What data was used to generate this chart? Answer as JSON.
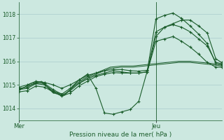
{
  "title": "Pression niveau de la mer( hPa )",
  "bg_color": "#cce8e0",
  "grid_color": "#aacccc",
  "line_color": "#1a5c2a",
  "ylim": [
    1013.5,
    1018.5
  ],
  "yticks": [
    1014,
    1015,
    1016,
    1017,
    1018
  ],
  "xtick_labels": [
    "Mer",
    "Jeu"
  ],
  "xtick_pos": [
    0,
    48
  ],
  "vline_x": 48,
  "xlim": [
    0,
    71
  ],
  "series_smooth_1": {
    "x": [
      0,
      4,
      8,
      12,
      16,
      20,
      24,
      28,
      32,
      36,
      40,
      44,
      48,
      52,
      56,
      60,
      64,
      68,
      71
    ],
    "y": [
      1014.8,
      1015.0,
      1015.1,
      1014.7,
      1014.6,
      1015.0,
      1015.3,
      1015.5,
      1015.7,
      1015.75,
      1015.75,
      1015.8,
      1015.85,
      1015.9,
      1015.95,
      1015.95,
      1015.9,
      1015.85,
      1015.8
    ]
  },
  "series_smooth_2": {
    "x": [
      0,
      4,
      8,
      12,
      16,
      20,
      24,
      28,
      32,
      36,
      40,
      44,
      48,
      52,
      56,
      60,
      64,
      68,
      71
    ],
    "y": [
      1014.75,
      1015.05,
      1015.15,
      1014.65,
      1014.55,
      1015.05,
      1015.35,
      1015.55,
      1015.75,
      1015.8,
      1015.8,
      1015.85,
      1015.9,
      1015.95,
      1016.0,
      1016.0,
      1015.95,
      1015.9,
      1015.85
    ]
  },
  "series_marker": [
    {
      "x": [
        0,
        3,
        6,
        9,
        12,
        15,
        18,
        21,
        24,
        27,
        30,
        33,
        36,
        39,
        42,
        45,
        48,
        51,
        54,
        57,
        60,
        63,
        66,
        69,
        71
      ],
      "y": [
        1014.85,
        1014.9,
        1015.1,
        1015.05,
        1014.8,
        1014.6,
        1014.85,
        1015.2,
        1015.45,
        1014.85,
        1013.8,
        1013.75,
        1013.85,
        1013.95,
        1014.3,
        1015.6,
        1017.05,
        1017.45,
        1017.6,
        1017.75,
        1017.75,
        1017.5,
        1017.2,
        1016.1,
        1015.95
      ]
    },
    {
      "x": [
        0,
        3,
        6,
        9,
        12,
        15,
        18,
        21,
        24,
        27,
        30,
        33,
        36,
        39,
        42,
        45,
        48,
        51,
        54,
        57,
        60,
        63,
        66,
        69,
        71
      ],
      "y": [
        1014.8,
        1014.85,
        1015.05,
        1015.0,
        1014.75,
        1014.55,
        1014.75,
        1015.05,
        1015.25,
        1015.4,
        1015.5,
        1015.6,
        1015.55,
        1015.5,
        1015.5,
        1015.55,
        1017.25,
        1017.45,
        1017.55,
        1017.45,
        1017.25,
        1016.95,
        1016.65,
        1015.95,
        1015.9
      ]
    },
    {
      "x": [
        0,
        3,
        6,
        9,
        12,
        15,
        18,
        21,
        24,
        27,
        30,
        33,
        36,
        39,
        42,
        45,
        48,
        51,
        54,
        57,
        60,
        63,
        66,
        69,
        71
      ],
      "y": [
        1014.9,
        1015.0,
        1015.15,
        1015.1,
        1015.0,
        1014.85,
        1015.0,
        1015.2,
        1015.4,
        1015.5,
        1015.6,
        1015.65,
        1015.65,
        1015.6,
        1015.58,
        1015.62,
        1017.8,
        1017.95,
        1018.05,
        1017.82,
        1017.5,
        1017.15,
        1016.75,
        1015.9,
        1015.85
      ]
    },
    {
      "x": [
        0,
        3,
        6,
        9,
        12,
        15,
        18,
        21,
        24,
        27,
        30,
        33,
        36,
        39,
        42,
        45,
        48,
        51,
        54,
        57,
        60,
        63,
        66,
        69,
        71
      ],
      "y": [
        1014.7,
        1014.75,
        1014.95,
        1014.9,
        1014.7,
        1014.52,
        1014.65,
        1014.95,
        1015.15,
        1015.35,
        1015.45,
        1015.52,
        1015.5,
        1015.5,
        1015.5,
        1015.55,
        1016.85,
        1016.95,
        1017.05,
        1016.85,
        1016.6,
        1016.3,
        1015.95,
        1015.75,
        1015.75
      ]
    }
  ]
}
